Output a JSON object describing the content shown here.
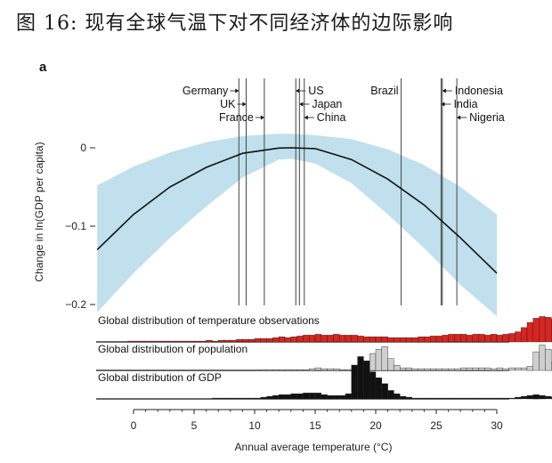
{
  "title": "图 16: 现有全球气温下对不同经济体的边际影响",
  "chart_data": {
    "type": "line",
    "panel_label": "a",
    "xlabel": "Annual average temperature (°C)",
    "ylabel": "Change in ln(GDP per capita)",
    "xlim": [
      -2,
      31
    ],
    "ylim": [
      -0.21,
      0.03
    ],
    "xticks": [
      0,
      5,
      10,
      15,
      20,
      25,
      30
    ],
    "yticks": [
      0,
      -0.1,
      -0.2
    ],
    "ytick_labels": [
      "0",
      "−0.1",
      "−0.2"
    ],
    "curve": {
      "x": [
        -3,
        0,
        3,
        6,
        9,
        12,
        13.06,
        15,
        18,
        21,
        24,
        27,
        30
      ],
      "y": [
        -0.13,
        -0.085,
        -0.05,
        -0.025,
        -0.007,
        -0.0003,
        0,
        -0.001,
        -0.015,
        -0.04,
        -0.073,
        -0.115,
        -0.16
      ]
    },
    "confidence_band": {
      "x": [
        -3,
        0,
        3,
        6,
        9,
        12,
        13,
        15,
        18,
        21,
        24,
        27,
        30
      ],
      "upper": [
        -0.048,
        -0.024,
        -0.006,
        0.007,
        0.015,
        0.018,
        0.018,
        0.016,
        0.011,
        -0.002,
        -0.022,
        -0.05,
        -0.085
      ],
      "lower": [
        -0.21,
        -0.16,
        -0.115,
        -0.075,
        -0.038,
        -0.015,
        -0.014,
        -0.02,
        -0.045,
        -0.085,
        -0.128,
        -0.175,
        -0.215
      ]
    },
    "countries": [
      {
        "name": "Germany",
        "temp": 8.7,
        "label_side": "left",
        "row": 0
      },
      {
        "name": "UK",
        "temp": 9.3,
        "label_side": "left",
        "row": 1
      },
      {
        "name": "France",
        "temp": 10.8,
        "label_side": "left",
        "row": 2
      },
      {
        "name": "US",
        "temp": 13.4,
        "label_side": "right",
        "row": 0
      },
      {
        "name": "Japan",
        "temp": 13.7,
        "label_side": "right",
        "row": 1
      },
      {
        "name": "China",
        "temp": 14.1,
        "label_side": "right",
        "row": 2
      },
      {
        "name": "Brazil",
        "temp": 22.1,
        "label_side": "left",
        "row": 0
      },
      {
        "name": "Indonesia",
        "temp": 25.5,
        "label_side": "right",
        "row": 0
      },
      {
        "name": "India",
        "temp": 25.4,
        "label_side": "right",
        "row": 1
      },
      {
        "name": "Nigeria",
        "temp": 26.7,
        "label_side": "right",
        "row": 2
      }
    ],
    "distributions": [
      {
        "label": "Global distribution of temperature observations",
        "color": "#d7251f",
        "x0": -0.5,
        "bin_width": 0.5,
        "values": [
          1,
          1,
          1,
          1,
          1,
          1,
          1,
          1,
          1,
          1,
          1,
          1,
          1,
          2,
          1,
          2,
          2,
          2,
          3,
          3,
          3,
          4,
          4,
          4,
          5,
          6,
          5,
          6,
          7,
          8,
          8,
          9,
          8,
          8,
          9,
          8,
          8,
          8,
          7,
          6,
          6,
          6,
          6,
          5,
          5,
          5,
          5,
          5,
          6,
          6,
          7,
          7,
          8,
          9,
          9,
          9,
          8,
          9,
          9,
          8,
          9,
          8,
          9,
          10,
          12,
          17,
          23,
          28,
          30,
          29,
          27,
          24,
          18,
          12,
          6,
          3,
          2,
          1
        ]
      },
      {
        "label": "Global distribution of population",
        "color": "#cfcfcf",
        "x0": -0.5,
        "bin_width": 0.5,
        "values": [
          0,
          0,
          0,
          0,
          0,
          0,
          0,
          0,
          0,
          0,
          0,
          0,
          0,
          0,
          0,
          0,
          0,
          0,
          0,
          0,
          0,
          0,
          1,
          1,
          1,
          1,
          1,
          1,
          1,
          1,
          2,
          3,
          2,
          2,
          2,
          1,
          1,
          2,
          1,
          3,
          20,
          25,
          28,
          14,
          6,
          3,
          3,
          2,
          2,
          2,
          2,
          2,
          2,
          2,
          2,
          3,
          3,
          3,
          3,
          3,
          2,
          3,
          2,
          3,
          3,
          3,
          5,
          22,
          30,
          25,
          10,
          3,
          2,
          1,
          1,
          0,
          0,
          0
        ]
      },
      {
        "label": "Global distribution of GDP",
        "color": "#111111",
        "x0": -0.5,
        "bin_width": 0.5,
        "values": [
          0,
          0,
          0,
          0,
          0,
          0,
          0,
          0,
          0,
          0,
          0,
          0,
          0,
          0,
          1,
          1,
          1,
          1,
          1,
          1,
          1,
          1,
          2,
          3,
          4,
          5,
          5,
          6,
          6,
          7,
          7,
          7,
          5,
          4,
          4,
          4,
          6,
          40,
          50,
          45,
          32,
          25,
          18,
          10,
          6,
          3,
          2,
          1,
          1,
          1,
          1,
          1,
          1,
          1,
          1,
          1,
          1,
          1,
          1,
          1,
          1,
          1,
          1,
          1,
          2,
          3,
          4,
          5,
          4,
          3,
          2,
          1,
          1,
          0,
          0,
          0,
          0,
          0
        ]
      }
    ],
    "grid": false,
    "legend": "none"
  }
}
